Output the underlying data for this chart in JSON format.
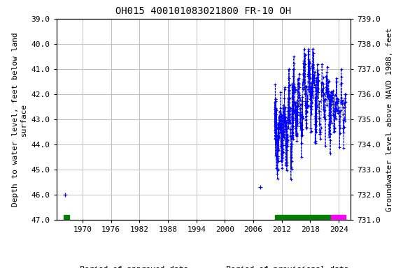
{
  "title": "OH015 400101083021800 FR-10 OH",
  "ylabel_left": "Depth to water level, feet below land\nsurface",
  "ylabel_right": "Groundwater level above NAVD 1988, feet",
  "ylim_left": [
    47.0,
    39.0
  ],
  "ylim_right": [
    731.0,
    739.0
  ],
  "xlim": [
    1964.5,
    2026.5
  ],
  "yticks_left": [
    39.0,
    40.0,
    41.0,
    42.0,
    43.0,
    44.0,
    45.0,
    46.0,
    47.0
  ],
  "yticks_right": [
    731.0,
    732.0,
    733.0,
    734.0,
    735.0,
    736.0,
    737.0,
    738.0,
    739.0
  ],
  "xticks": [
    1970,
    1976,
    1982,
    1988,
    1994,
    2000,
    2006,
    2012,
    2018,
    2024
  ],
  "data_color": "#0000FF",
  "approved_color": "#008000",
  "provisional_color": "#FF00FF",
  "background_color": "#FFFFFF",
  "grid_color": "#C0C0C0",
  "title_fontsize": 10,
  "axis_fontsize": 8,
  "tick_fontsize": 8,
  "legend_fontsize": 8,
  "point1_x": 1966.3,
  "point1_y": 46.0,
  "point2_x": 2007.5,
  "point2_y": 45.7,
  "approved_bar1_start": 1966.0,
  "approved_bar1_end": 1967.2,
  "approved_bar2_start": 2010.5,
  "approved_bar2_end": 2022.3,
  "provisional_bar_start": 2022.3,
  "provisional_bar_end": 2025.5
}
